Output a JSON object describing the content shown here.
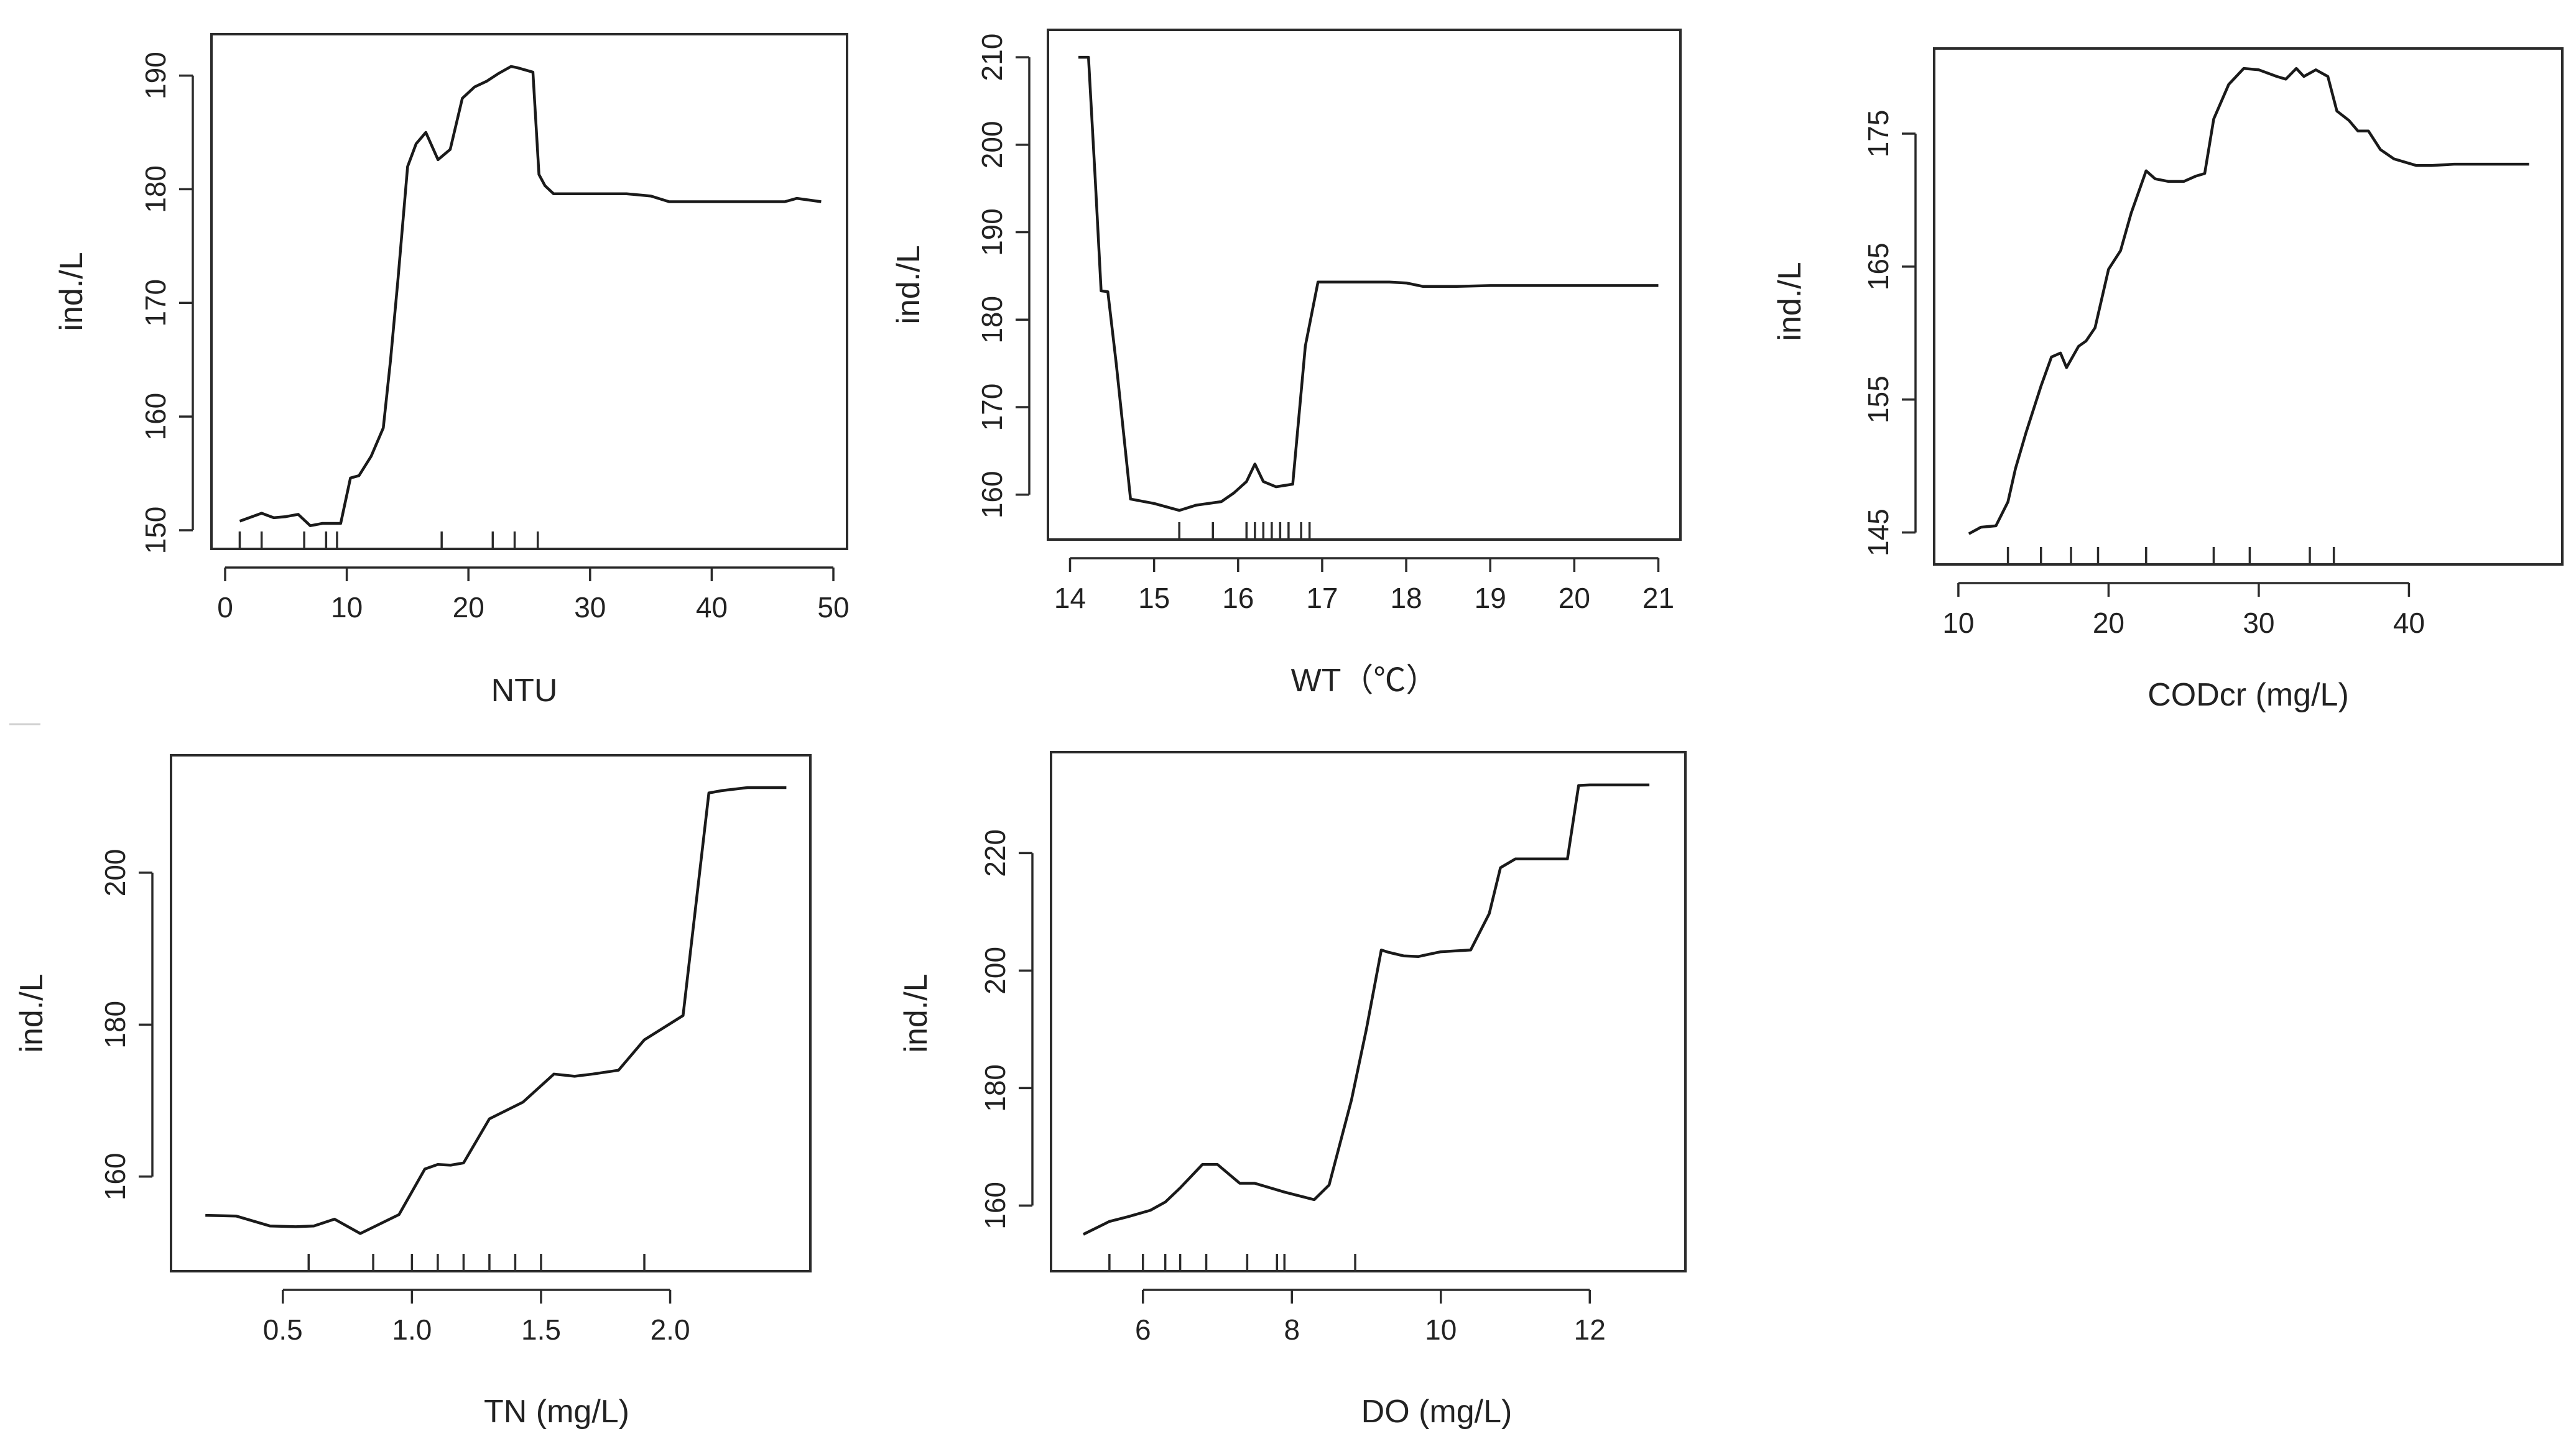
{
  "chart_data": [
    {
      "type": "line",
      "title": "",
      "xlabel": "NTU",
      "ylabel": "ind./L",
      "xlim": [
        0,
        50
      ],
      "ylim": [
        150,
        192
      ],
      "xticks": [
        "0",
        "10",
        "20",
        "30",
        "40",
        "50"
      ],
      "yticks": [
        "150",
        "160",
        "170",
        "180",
        "190"
      ],
      "x": [
        1.2,
        3,
        4,
        5,
        6,
        7,
        8,
        9.5,
        10.3,
        11,
        12,
        13,
        13.6,
        14.2,
        15,
        15.7,
        16.5,
        17.5,
        18.5,
        19.5,
        20.5,
        21.5,
        22.5,
        23.5,
        24,
        25.3,
        25.8,
        26.3,
        27,
        29,
        33,
        35,
        36.5,
        38,
        46,
        47,
        49
      ],
      "values": [
        150.8,
        151.5,
        151.1,
        151.2,
        151.4,
        150.4,
        150.6,
        150.6,
        154.6,
        154.8,
        156.5,
        159,
        165,
        172,
        182,
        184,
        185,
        182.6,
        183.5,
        188,
        189,
        189.5,
        190.2,
        190.8,
        190.7,
        190.3,
        181.3,
        180.3,
        179.6,
        179.6,
        179.6,
        179.4,
        178.9,
        178.9,
        178.9,
        179.2,
        178.9
      ],
      "rug": [
        1.2,
        3,
        6.5,
        8.3,
        9.2,
        17.8,
        22,
        23.8,
        25.7
      ]
    },
    {
      "type": "line",
      "title": "",
      "xlabel": "WT（℃）",
      "ylabel": "ind./L",
      "xlim": [
        13.9,
        21.1
      ],
      "ylim": [
        157,
        211
      ],
      "xticks": [
        "14",
        "15",
        "16",
        "17",
        "18",
        "19",
        "20",
        "21"
      ],
      "yticks": [
        "160",
        "170",
        "180",
        "190",
        "200",
        "210"
      ],
      "x": [
        14.1,
        14.22,
        14.3,
        14.37,
        14.45,
        14.55,
        14.72,
        15,
        15.3,
        15.5,
        15.8,
        15.95,
        16.1,
        16.2,
        16.3,
        16.45,
        16.65,
        16.8,
        16.95,
        17.5,
        17.8,
        18,
        18.2,
        18.6,
        19,
        21
      ],
      "values": [
        210,
        210,
        196,
        183.3,
        183.2,
        175,
        159.5,
        159,
        158.2,
        158.8,
        159.2,
        160.2,
        161.5,
        163.5,
        161.5,
        160.9,
        161.2,
        177,
        184.3,
        184.3,
        184.3,
        184.2,
        183.8,
        183.8,
        183.9,
        183.9
      ],
      "rug": [
        15.3,
        15.7,
        16.1,
        16.2,
        16.3,
        16.4,
        16.5,
        16.6,
        16.75,
        16.85
      ]
    },
    {
      "type": "line",
      "title": "",
      "xlabel": "CODcr  (mg/L)",
      "ylabel": "ind./L",
      "xlim": [
        9.3,
        49.3
      ],
      "ylim": [
        144,
        180
      ],
      "xticks": [
        "10",
        "20",
        "30",
        "40"
      ],
      "yticks": [
        "145",
        "155",
        "165",
        "175"
      ],
      "x": [
        10.7,
        11.5,
        12.5,
        13.3,
        13.8,
        14.5,
        15.5,
        16.2,
        16.8,
        17.2,
        18,
        18.5,
        19.1,
        20,
        20.8,
        21.5,
        22.5,
        23.1,
        24,
        25,
        25.8,
        26.4,
        27,
        28,
        29,
        30,
        31.2,
        31.8,
        32.5,
        33,
        33.8,
        34.6,
        35.2,
        36,
        36.6,
        37.3,
        38.1,
        39,
        40.5,
        41.5,
        43,
        48
      ],
      "values": [
        144.9,
        145.4,
        145.5,
        147.3,
        149.8,
        152.5,
        156,
        158.2,
        158.5,
        157.4,
        159,
        159.4,
        160.4,
        164.8,
        166.2,
        169,
        172.2,
        171.6,
        171.4,
        171.4,
        171.8,
        172,
        176.1,
        178.7,
        179.9,
        179.8,
        179.3,
        179.1,
        179.9,
        179.3,
        179.8,
        179.3,
        176.7,
        176,
        175.2,
        175.2,
        173.8,
        173.1,
        172.6,
        172.6,
        172.7,
        172.7
      ],
      "rug": [
        13.3,
        15.5,
        17.5,
        19.3,
        22.5,
        27,
        29.4,
        33.4,
        35
      ]
    },
    {
      "type": "line",
      "title": "",
      "xlabel": "TN (mg/L)",
      "ylabel": "ind./L",
      "xlim": [
        0.12,
        2.49
      ],
      "ylim": [
        150,
        213
      ],
      "xticks": [
        "0.5",
        "1.0",
        "1.5",
        "2.0"
      ],
      "yticks": [
        "160",
        "180",
        "200"
      ],
      "x": [
        0.2,
        0.32,
        0.45,
        0.55,
        0.62,
        0.7,
        0.8,
        0.95,
        1.05,
        1.1,
        1.15,
        1.2,
        1.3,
        1.43,
        1.55,
        1.63,
        1.7,
        1.8,
        1.9,
        2.05,
        2.15,
        2.2,
        2.3,
        2.45
      ],
      "values": [
        154.9,
        154.8,
        153.5,
        153.4,
        153.5,
        154.4,
        152.5,
        155,
        161,
        161.6,
        161.5,
        161.8,
        167.6,
        169.8,
        173.5,
        173.2,
        173.5,
        174,
        178,
        181.2,
        210.5,
        210.8,
        211.2,
        211.2
      ],
      "rug": [
        0.6,
        0.85,
        1.0,
        1.1,
        1.2,
        1.3,
        1.4,
        1.5,
        1.9
      ]
    },
    {
      "type": "line",
      "title": "",
      "xlabel": "DO (mg/L)",
      "ylabel": "ind./L",
      "xlim": [
        4.95,
        13.1
      ],
      "ylim": [
        152,
        234
      ],
      "xticks": [
        "6",
        "8",
        "10",
        "12"
      ],
      "yticks": [
        "160",
        "180",
        "200",
        "220"
      ],
      "x": [
        5.2,
        5.55,
        5.8,
        6.1,
        6.3,
        6.5,
        6.8,
        7.0,
        7.3,
        7.5,
        7.9,
        8.3,
        8.5,
        8.8,
        9.0,
        9.2,
        9.3,
        9.5,
        9.7,
        10.0,
        10.4,
        10.65,
        10.8,
        11.0,
        11.5,
        11.7,
        11.85,
        12.0,
        12.8
      ],
      "values": [
        155.1,
        157.3,
        158.1,
        159.2,
        160.6,
        163,
        167,
        167,
        163.8,
        163.8,
        162.3,
        161,
        163.5,
        178,
        190,
        203.5,
        203.1,
        202.5,
        202.4,
        203.2,
        203.5,
        209.7,
        217.5,
        219,
        219,
        219,
        231.5,
        231.6,
        231.6
      ],
      "rug": [
        5.55,
        6.0,
        6.3,
        6.5,
        6.85,
        7.4,
        7.8,
        7.9,
        8.85
      ]
    }
  ]
}
